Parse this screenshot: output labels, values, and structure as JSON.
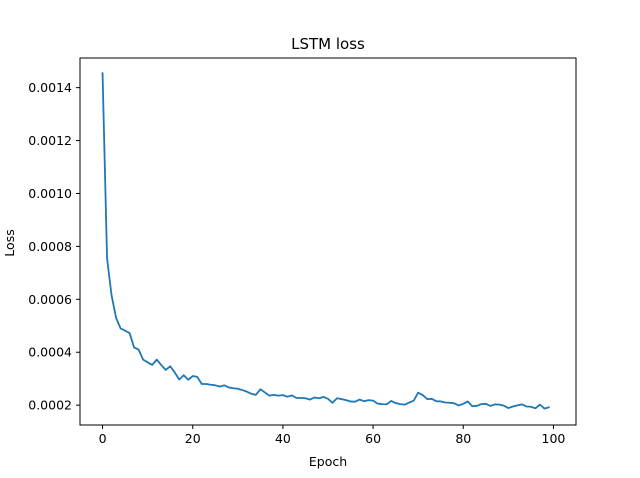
{
  "chart_data": {
    "type": "line",
    "title": "LSTM loss",
    "xlabel": "Epoch",
    "ylabel": "Loss",
    "xlim": [
      -5,
      105
    ],
    "ylim": [
      0.000125,
      0.001512
    ],
    "xticks": [
      0,
      20,
      40,
      60,
      80,
      100
    ],
    "xtick_labels": [
      "0",
      "20",
      "40",
      "60",
      "80",
      "100"
    ],
    "yticks": [
      0.0002,
      0.0004,
      0.0006,
      0.0008,
      0.001,
      0.0012,
      0.0014
    ],
    "ytick_labels": [
      "0.0002",
      "0.0004",
      "0.0006",
      "0.0008",
      "0.0010",
      "0.0012",
      "0.0014"
    ],
    "grid": false,
    "line_color": "#1f77b4",
    "series": [
      {
        "x": [
          0,
          1,
          2,
          3,
          4,
          5,
          6,
          7,
          8,
          9,
          10,
          11,
          12,
          13,
          14,
          15,
          16,
          17,
          18,
          19,
          20,
          21,
          22,
          23,
          24,
          25,
          26,
          27,
          28,
          29,
          30,
          31,
          32,
          33,
          34,
          35,
          36,
          37,
          38,
          39,
          40,
          41,
          42,
          43,
          44,
          45,
          46,
          47,
          48,
          49,
          50,
          51,
          52,
          53,
          54,
          55,
          56,
          57,
          58,
          59,
          60,
          61,
          62,
          63,
          64,
          65,
          66,
          67,
          68,
          69,
          70,
          71,
          72,
          73,
          74,
          75,
          76,
          77,
          78,
          79,
          80,
          81,
          82,
          83,
          84,
          85,
          86,
          87,
          88,
          89,
          90,
          91,
          92,
          93,
          94,
          95,
          96,
          97,
          98,
          99
        ],
        "values": [
          0.001455,
          0.000755,
          0.000615,
          0.00053,
          0.00049,
          0.000482,
          0.000472,
          0.000418,
          0.00041,
          0.000372,
          0.000362,
          0.000352,
          0.000372,
          0.000352,
          0.000333,
          0.000347,
          0.000324,
          0.000297,
          0.000313,
          0.000296,
          0.00031,
          0.000307,
          0.00028,
          0.00028,
          0.000277,
          0.000275,
          0.00027,
          0.000275,
          0.000267,
          0.000264,
          0.000262,
          0.000257,
          0.000251,
          0.000243,
          0.000239,
          0.00026,
          0.000248,
          0.000236,
          0.000239,
          0.000236,
          0.000238,
          0.000232,
          0.000237,
          0.000227,
          0.000227,
          0.000226,
          0.000221,
          0.000229,
          0.000226,
          0.000231,
          0.000224,
          0.000209,
          0.000226,
          0.000223,
          0.000219,
          0.000214,
          0.000213,
          0.000221,
          0.000215,
          0.000219,
          0.000217,
          0.000206,
          0.000204,
          0.000203,
          0.000216,
          0.000208,
          0.000204,
          0.000202,
          0.00021,
          0.000217,
          0.000247,
          0.000238,
          0.000223,
          0.000224,
          0.000215,
          0.000214,
          0.00021,
          0.000209,
          0.000207,
          0.000199,
          0.000205,
          0.000214,
          0.000196,
          0.000197,
          0.000204,
          0.000205,
          0.000197,
          0.000203,
          0.000202,
          0.000198,
          0.000189,
          0.000195,
          0.000199,
          0.000203,
          0.000195,
          0.000194,
          0.000188,
          0.000202,
          0.000187,
          0.000192
        ]
      }
    ]
  }
}
